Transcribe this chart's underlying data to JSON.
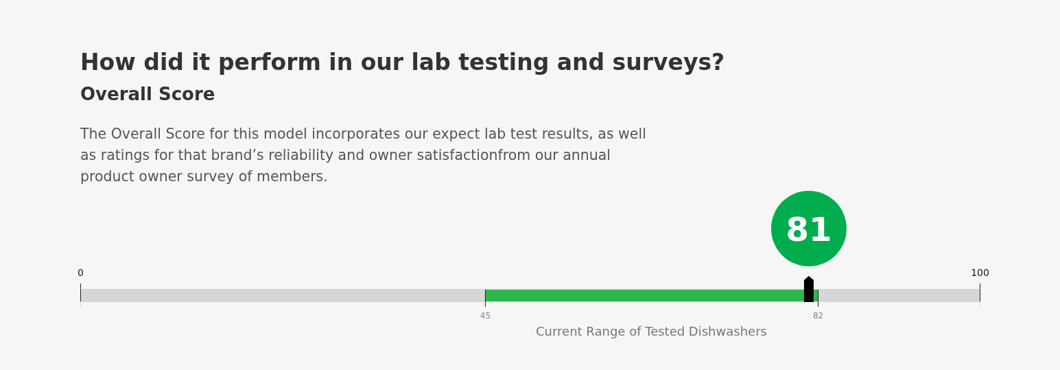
{
  "chart_data": {
    "type": "bar",
    "orientation": "horizontal",
    "title": "How did it perform in our lab testing and surveys?",
    "subtitle": "Overall Score",
    "annotations": [
      "The Overall Score for this model incorporates our expect lab test results, as well as ratings for that brand’s reliability and owner satisfactionfrom our annual product owner survey of members."
    ],
    "xlabel": "Current Range of Tested Dishwashers",
    "categories": [
      null
    ],
    "base": [
      45
    ],
    "values": [
      37
    ],
    "color": "#2db84a",
    "xlim": [
      0,
      100
    ],
    "xticks": [
      45,
      82
    ],
    "x2lim": [
      0,
      100
    ],
    "x2ticks": [
      0,
      100
    ],
    "ref_lines": [
      {
        "axis": "x",
        "value": 81,
        "label": "81",
        "color": "#000000"
      }
    ]
  }
}
